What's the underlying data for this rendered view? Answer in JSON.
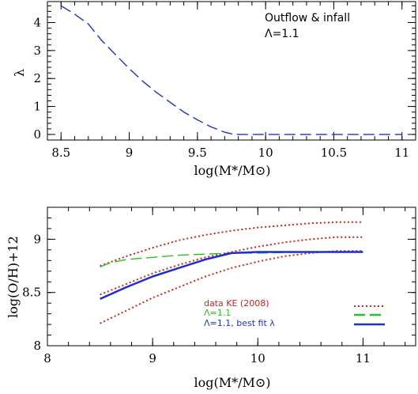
{
  "chart_data": [
    {
      "type": "line",
      "xlabel": "log(M*/M⊙)",
      "ylabel": "λ",
      "xlim": [
        8.4,
        11.1
      ],
      "ylim": [
        -0.2,
        4.75
      ],
      "xticks": [
        8.5,
        9,
        9.5,
        10,
        10.5,
        11
      ],
      "xtick_labels": [
        "8.5",
        "9",
        "9.5",
        "10",
        "10.5",
        "11"
      ],
      "yticks": [
        0,
        1,
        2,
        3,
        4
      ],
      "ytick_labels": [
        "0",
        "1",
        "2",
        "3",
        "4"
      ],
      "annotation_lines": [
        "Outflow & infall",
        "Λ=1.1"
      ],
      "series": [
        {
          "color": "#1f2fcf",
          "style": "dashed",
          "x": [
            8.5,
            8.6,
            8.7,
            8.8,
            8.9,
            9.0,
            9.1,
            9.2,
            9.3,
            9.4,
            9.5,
            9.6,
            9.7,
            9.75,
            9.8,
            10.0,
            10.5,
            11.0
          ],
          "y": [
            4.6,
            4.3,
            3.95,
            3.35,
            2.85,
            2.35,
            1.9,
            1.5,
            1.15,
            0.8,
            0.52,
            0.27,
            0.08,
            0.02,
            0.0,
            0.0,
            0.0,
            0.0
          ]
        }
      ]
    },
    {
      "type": "line",
      "xlabel": "log(M*/M⊙)",
      "ylabel": "log(O/H)+12",
      "xlim": [
        8.0,
        11.5
      ],
      "ylim": [
        8.0,
        9.3
      ],
      "xticks": [
        8,
        9,
        10,
        11
      ],
      "xtick_labels": [
        "8",
        "9",
        "10",
        "11"
      ],
      "yticks": [
        8,
        8.5,
        9
      ],
      "ytick_labels": [
        "8",
        "8.5",
        "9"
      ],
      "legend": [
        {
          "label": "data KE (2008)",
          "color": "#d42020",
          "style": "dotted"
        },
        {
          "label": "Λ=1.1",
          "color": "#22c322",
          "style": "dashed"
        },
        {
          "label": "Λ=1.1, best fit λ",
          "color": "#1f2fcf",
          "style": "solid"
        }
      ],
      "series": [
        {
          "color": "#d42020",
          "style": "dotted",
          "x": [
            8.5,
            8.75,
            9.0,
            9.25,
            9.5,
            9.75,
            10.0,
            10.25,
            10.5,
            10.75,
            11.0
          ],
          "y": [
            8.75,
            8.84,
            8.92,
            8.99,
            9.04,
            9.08,
            9.11,
            9.13,
            9.15,
            9.16,
            9.16
          ]
        },
        {
          "color": "#d42020",
          "style": "dotted",
          "x": [
            8.5,
            8.75,
            9.0,
            9.25,
            9.5,
            9.75,
            10.0,
            10.25,
            10.5,
            10.75,
            11.0
          ],
          "y": [
            8.48,
            8.58,
            8.68,
            8.76,
            8.83,
            8.88,
            8.93,
            8.97,
            9.0,
            9.02,
            9.02
          ]
        },
        {
          "color": "#d42020",
          "style": "dotted",
          "x": [
            8.5,
            8.75,
            9.0,
            9.25,
            9.5,
            9.75,
            10.0,
            10.25,
            10.5,
            10.75,
            11.0
          ],
          "y": [
            8.21,
            8.33,
            8.45,
            8.55,
            8.65,
            8.73,
            8.79,
            8.84,
            8.87,
            8.89,
            8.89
          ]
        },
        {
          "color": "#22c322",
          "style": "dashed",
          "x": [
            8.5,
            8.6,
            8.75,
            9.0,
            9.25,
            9.5,
            9.75,
            10.0,
            10.5,
            11.0
          ],
          "y": [
            8.74,
            8.78,
            8.81,
            8.83,
            8.85,
            8.86,
            8.87,
            8.87,
            8.88,
            8.88
          ]
        },
        {
          "color": "#1f2fcf",
          "style": "solid",
          "x": [
            8.5,
            8.75,
            9.0,
            9.25,
            9.5,
            9.75,
            10.0,
            10.5,
            11.0
          ],
          "y": [
            8.44,
            8.55,
            8.65,
            8.73,
            8.81,
            8.87,
            8.88,
            8.88,
            8.88
          ]
        }
      ]
    }
  ]
}
